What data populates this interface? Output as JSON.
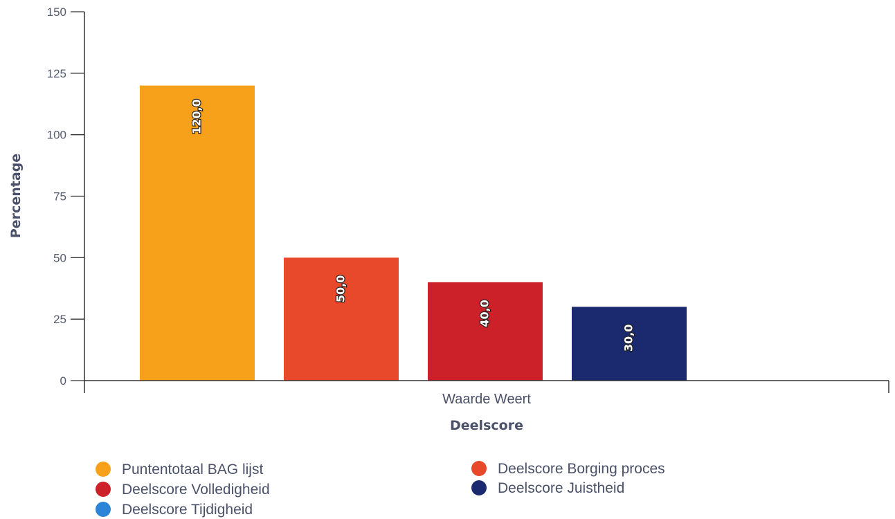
{
  "chart_data": {
    "type": "bar",
    "ylabel": "Percentage",
    "xlabel": "Deelscore",
    "categories": [
      "Waarde Weert"
    ],
    "ylim": [
      0,
      150
    ],
    "yticks": [
      0,
      25,
      50,
      75,
      100,
      125,
      150
    ],
    "grid": false,
    "legend_position": "bottom",
    "series": [
      {
        "name": "Puntentotaal BAG lijst",
        "values": [
          120.0
        ],
        "label": "120,0",
        "color": "#f7a11a"
      },
      {
        "name": "Deelscore Borging proces",
        "values": [
          50.0
        ],
        "label": "50,0",
        "color": "#e8492a"
      },
      {
        "name": "Deelscore Volledigheid",
        "values": [
          40.0
        ],
        "label": "40,0",
        "color": "#cc2128"
      },
      {
        "name": "Deelscore Juistheid",
        "values": [
          30.0
        ],
        "label": "30,0",
        "color": "#1b2a6e"
      },
      {
        "name": "Deelscore Tijdigheid",
        "values": [
          null
        ],
        "label": "",
        "color": "#2b84d6"
      }
    ]
  }
}
